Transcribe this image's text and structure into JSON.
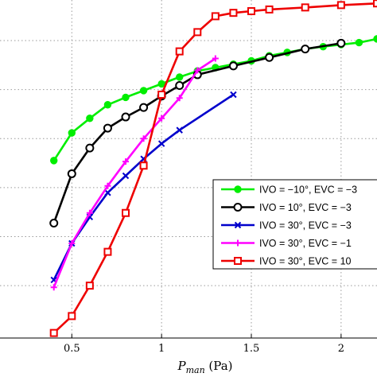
{
  "chart_data": {
    "type": "line",
    "xlabel_main": "P",
    "xlabel_sub": "man",
    "xlabel_unit": " (Pa)",
    "xlim": [
      0.1,
      2.2
    ],
    "x_ticks": [
      {
        "value": 0.5,
        "label": "0.5"
      },
      {
        "value": 1.0,
        "label": "1"
      },
      {
        "value": 1.5,
        "label": "1.5"
      },
      {
        "value": 2.0,
        "label": "2"
      }
    ],
    "ylim": [
      0,
      1
    ],
    "y_grid": [
      0.155,
      0.3,
      0.445,
      0.59,
      0.735,
      0.88
    ],
    "grid": true,
    "legend_placement": "right",
    "series": [
      {
        "name": "IVO = −10°, EVC = −3",
        "color": "#00ee00",
        "marker": "dot",
        "x": [
          0.4,
          0.5,
          0.6,
          0.7,
          0.8,
          0.9,
          1.0,
          1.1,
          1.2,
          1.3,
          1.4,
          1.5,
          1.6,
          1.7,
          1.8,
          1.9,
          2.0,
          2.1,
          2.2
        ],
        "y": [
          0.525,
          0.607,
          0.65,
          0.69,
          0.712,
          0.732,
          0.752,
          0.772,
          0.79,
          0.8,
          0.81,
          0.82,
          0.835,
          0.845,
          0.855,
          0.862,
          0.868,
          0.874,
          0.885
        ]
      },
      {
        "name": "IVO =  10°, EVC = −3",
        "color": "#000000",
        "marker": "circle",
        "x": [
          0.4,
          0.5,
          0.6,
          0.7,
          0.8,
          0.9,
          1.0,
          1.1,
          1.2,
          1.4,
          1.6,
          1.8,
          2.0
        ],
        "y": [
          0.34,
          0.486,
          0.562,
          0.621,
          0.654,
          0.682,
          0.716,
          0.747,
          0.779,
          0.805,
          0.83,
          0.855,
          0.872
        ]
      },
      {
        "name": "IVO =  30°, EVC = −3",
        "color": "#0000cc",
        "marker": "x",
        "x": [
          0.4,
          0.5,
          0.6,
          0.7,
          0.8,
          0.9,
          1.0,
          1.1,
          1.4
        ],
        "y": [
          0.172,
          0.28,
          0.358,
          0.43,
          0.48,
          0.53,
          0.575,
          0.615,
          0.72
        ]
      },
      {
        "name": "IVO =  30°, EVC = −1",
        "color": "#ff00ff",
        "marker": "plus",
        "x": [
          0.4,
          0.5,
          0.6,
          0.7,
          0.8,
          0.9,
          1.0,
          1.1,
          1.2,
          1.3
        ],
        "y": [
          0.15,
          0.28,
          0.37,
          0.45,
          0.522,
          0.59,
          0.65,
          0.71,
          0.792,
          0.827
        ]
      },
      {
        "name": "IVO =  30°, EVC =  10",
        "color": "#ee0000",
        "marker": "square",
        "x": [
          0.4,
          0.5,
          0.6,
          0.7,
          0.8,
          0.9,
          1.0,
          1.1,
          1.2,
          1.3,
          1.4,
          1.5,
          1.6,
          1.8,
          2.0,
          2.2
        ],
        "y": [
          0.015,
          0.065,
          0.155,
          0.255,
          0.37,
          0.51,
          0.72,
          0.848,
          0.905,
          0.952,
          0.962,
          0.967,
          0.972,
          0.978,
          0.985,
          0.99
        ]
      }
    ]
  }
}
